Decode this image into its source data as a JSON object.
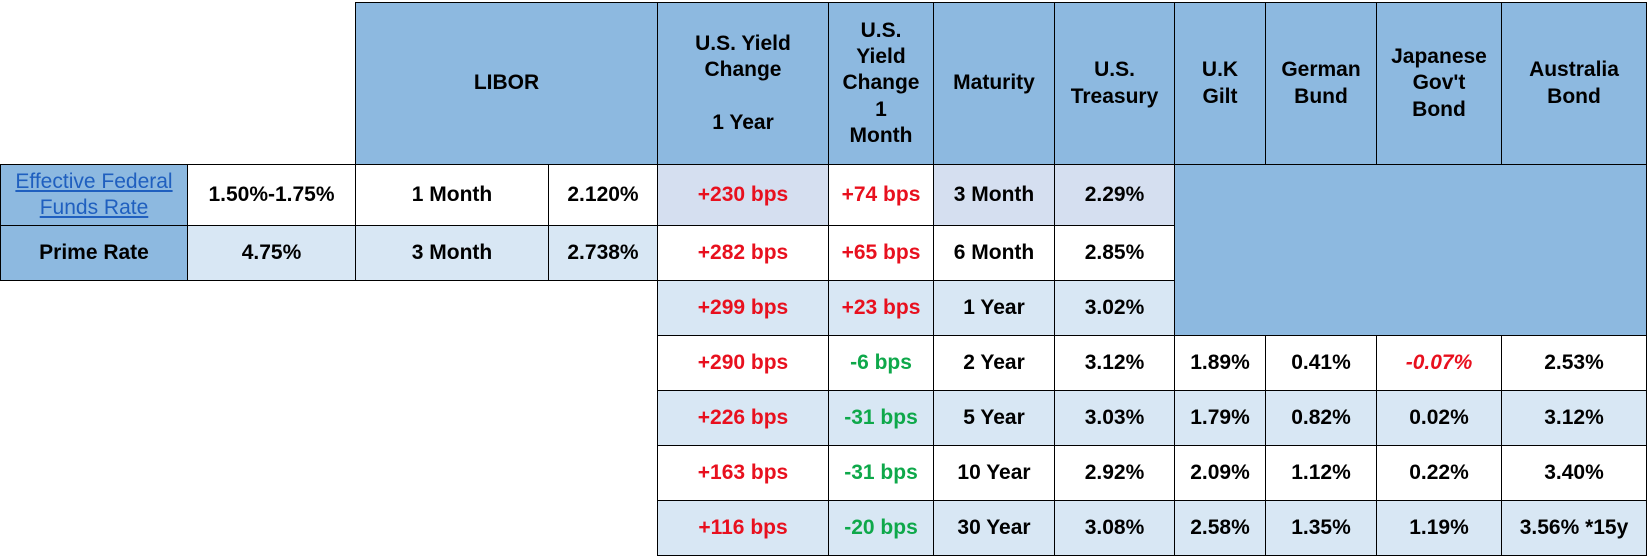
{
  "headers": {
    "libor": "LIBOR",
    "yield_1y_l1": "U.S. Yield",
    "yield_1y_l2": "Change",
    "yield_1y_l3": "1 Year",
    "yield_1m_l1": "U.S.",
    "yield_1m_l2": "Yield",
    "yield_1m_l3": "Change",
    "yield_1m_l4": "1",
    "yield_1m_l5": "Month",
    "maturity": "Maturity",
    "treasury_l1": "U.S.",
    "treasury_l2": "Treasury",
    "gilt_l1": "U.K",
    "gilt_l2": "Gilt",
    "bund_l1": "German",
    "bund_l2": "Bund",
    "jgb_l1": "Japanese",
    "jgb_l2": "Gov't",
    "jgb_l3": "Bond",
    "aus_l1": "Australia",
    "aus_l2": "Bond"
  },
  "rates": [
    {
      "name_l1": "Effective Federal",
      "name_l2": "Funds Rate",
      "value": "1.50%-1.75%",
      "libor_term": "1 Month",
      "libor_rate": "2.120%"
    },
    {
      "name": "Prime Rate",
      "value": "4.75%",
      "libor_term": "3 Month",
      "libor_rate": "2.738%"
    }
  ],
  "rows": [
    {
      "chg1y": "+230 bps",
      "chg1m": "+74 bps",
      "maturity": "3 Month",
      "treasury": "2.29%"
    },
    {
      "chg1y": "+282 bps",
      "chg1m": "+65 bps",
      "maturity": "6 Month",
      "treasury": "2.85%"
    },
    {
      "chg1y": "+299 bps",
      "chg1m": "+23 bps",
      "maturity": "1 Year",
      "treasury": "3.02%"
    },
    {
      "chg1y": "+290 bps",
      "chg1m": "-6 bps",
      "maturity": "2 Year",
      "treasury": "3.12%",
      "gilt": "1.89%",
      "bund": "0.41%",
      "jgb": "-0.07%",
      "aus": "2.53%"
    },
    {
      "chg1y": "+226 bps",
      "chg1m": "-31 bps",
      "maturity": "5 Year",
      "treasury": "3.03%",
      "gilt": "1.79%",
      "bund": "0.82%",
      "jgb": "0.02%",
      "aus": "3.12%"
    },
    {
      "chg1y": "+163 bps",
      "chg1m": "-31 bps",
      "maturity": "10 Year",
      "treasury": "2.92%",
      "gilt": "2.09%",
      "bund": "1.12%",
      "jgb": "0.22%",
      "aus": "3.40%"
    },
    {
      "chg1y": "+116 bps",
      "chg1m": "-20 bps",
      "maturity": "30 Year",
      "treasury": "3.08%",
      "gilt": "2.58%",
      "bund": "1.35%",
      "jgb": "1.19%",
      "aus": "3.56% *15y"
    }
  ],
  "colors": {
    "header_blue": "#8db9e0",
    "light_blue": "#d8e7f4",
    "positive_red": "#e8101e",
    "negative_green": "#0ea84a"
  }
}
